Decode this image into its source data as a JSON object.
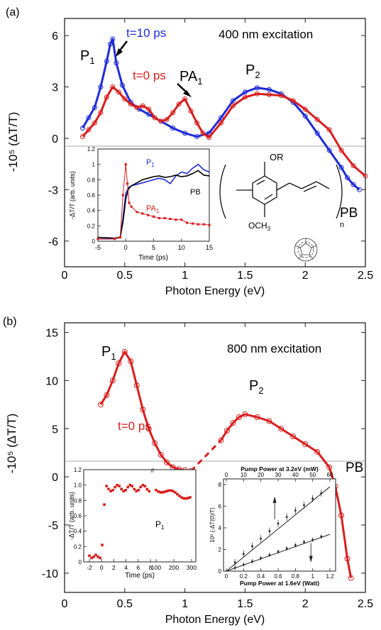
{
  "chart_data": [
    {
      "panel": "(a)",
      "type": "line",
      "annotation": "400 nm excitation",
      "xlabel": "Photon Energy (eV)",
      "ylabel": "-10⁵ (ΔT/T)",
      "xlim": [
        0,
        2.5
      ],
      "ylim": [
        -7.5,
        7
      ],
      "xticks": [
        "0",
        "0.5",
        "1",
        "1.5",
        "2",
        "2.5"
      ],
      "yticks": [
        "6",
        "3",
        "0",
        "-3",
        "-6"
      ],
      "ytick_values": [
        6,
        3,
        0,
        -3,
        -6
      ],
      "labels": {
        "p1": "P",
        "p1_sub": "1",
        "p2": "P",
        "p2_sub": "2",
        "pa1": "PA",
        "pa1_sub": "1",
        "pb": "PB",
        "t10": "t=10 ps",
        "t0": "t=0 ps"
      },
      "colors": {
        "t10": "#1f2bd6",
        "t0": "#d81e1e"
      },
      "series": [
        {
          "name": "t=10 ps",
          "x": [
            0.15,
            0.2,
            0.25,
            0.3,
            0.35,
            0.38,
            0.4,
            0.43,
            0.48,
            0.55,
            0.62,
            0.7,
            0.8,
            0.9,
            1.0,
            1.1,
            1.2,
            1.3,
            1.4,
            1.5,
            1.6,
            1.7,
            1.8,
            1.9,
            2.0,
            2.1,
            2.2,
            2.3,
            2.35,
            2.4,
            2.45
          ],
          "y": [
            0.6,
            1.2,
            1.8,
            3.0,
            4.5,
            5.5,
            5.8,
            4.4,
            3.1,
            2.1,
            1.7,
            1.4,
            1.0,
            0.6,
            0.3,
            0.1,
            0.3,
            1.2,
            2.2,
            2.7,
            2.95,
            2.85,
            2.6,
            2.1,
            1.3,
            0.3,
            -0.7,
            -1.7,
            -2.3,
            -2.7,
            -3.0
          ]
        },
        {
          "name": "t=0 ps",
          "x": [
            0.15,
            0.2,
            0.25,
            0.3,
            0.35,
            0.4,
            0.45,
            0.5,
            0.55,
            0.6,
            0.65,
            0.7,
            0.75,
            0.8,
            0.85,
            0.9,
            0.95,
            1.0,
            1.05,
            1.1,
            1.15,
            1.2,
            1.3,
            1.4,
            1.5,
            1.6,
            1.7,
            1.8,
            1.9,
            2.0,
            2.1,
            2.2,
            2.3,
            2.4,
            2.5
          ],
          "y": [
            0.1,
            0.5,
            0.9,
            1.5,
            2.4,
            3.0,
            2.7,
            2.3,
            2.0,
            1.8,
            1.9,
            1.7,
            1.2,
            1.0,
            1.1,
            1.5,
            2.0,
            2.3,
            1.6,
            0.9,
            0.3,
            0.05,
            0.9,
            1.9,
            2.4,
            2.6,
            2.55,
            2.5,
            2.2,
            1.7,
            1.1,
            0.5,
            -0.7,
            -1.6,
            -2.2
          ]
        }
      ],
      "inset": {
        "type": "line",
        "xlabel": "Time (ps)",
        "ylabel": "-ΔT/T (arb. units)",
        "xlim": [
          -5,
          15
        ],
        "ylim": [
          0,
          1.2
        ],
        "xticks": [
          "-5",
          "0",
          "5",
          "10",
          "15"
        ],
        "yticks": [
          "0",
          "0.2",
          "0.4",
          "0.6",
          "0.8",
          "1",
          "1.2"
        ],
        "labels": {
          "p1": "P",
          "p1_sub": "1",
          "pa1": "PA",
          "pa1_sub": "1",
          "pb": "PB"
        },
        "series": [
          {
            "name": "P1",
            "x": [
              -5,
              -2,
              -1,
              -0.5,
              0,
              0.5,
              1,
              2,
              3,
              4,
              5,
              6,
              7,
              8,
              9,
              10,
              11,
              12,
              13,
              14,
              15
            ],
            "y": [
              0.03,
              0.03,
              0.05,
              0.3,
              0.62,
              0.7,
              0.72,
              0.74,
              0.76,
              0.78,
              0.8,
              0.82,
              0.8,
              0.75,
              0.85,
              0.9,
              0.88,
              0.95,
              1.0,
              0.93,
              0.9
            ]
          },
          {
            "name": "PB",
            "x": [
              -5,
              -2,
              -1,
              -0.5,
              0,
              0.5,
              1,
              2,
              3,
              4,
              5,
              6,
              7,
              8,
              9,
              10,
              11,
              12,
              13,
              14,
              15
            ],
            "y": [
              0.05,
              0.04,
              0.05,
              0.25,
              0.55,
              0.68,
              0.72,
              0.76,
              0.8,
              0.82,
              0.84,
              0.85,
              0.83,
              0.84,
              0.86,
              0.84,
              0.85,
              0.88,
              0.92,
              0.86,
              0.85
            ]
          },
          {
            "name": "PA1",
            "x": [
              -5,
              -2,
              -1,
              -0.5,
              0,
              0.3,
              0.6,
              1,
              2,
              3,
              4,
              5,
              6,
              7,
              8,
              9,
              10,
              11,
              12,
              13,
              14,
              15
            ],
            "y": [
              0.03,
              0.03,
              0.05,
              0.6,
              1.0,
              0.75,
              0.5,
              0.45,
              0.38,
              0.36,
              0.34,
              0.32,
              0.3,
              0.3,
              0.29,
              0.28,
              0.28,
              0.24,
              0.23,
              0.22,
              0.22,
              0.21
            ]
          }
        ]
      },
      "molecule": {
        "or_label": "OR",
        "och3_label": "OCH",
        "och3_sub": "3",
        "n_label": "n"
      }
    },
    {
      "panel": "(b)",
      "type": "line",
      "annotation": "800 nm excitation",
      "xlabel": "Photon Energy (eV)",
      "ylabel": "-10⁵ (ΔT/T)",
      "xlim": [
        0,
        2.5
      ],
      "ylim": [
        -12,
        16
      ],
      "xticks": [
        "0",
        "0.5",
        "1",
        "1.5",
        "2",
        "2.5"
      ],
      "yticks": [
        "15",
        "10",
        "5",
        "0",
        "-5",
        "-10"
      ],
      "ytick_values": [
        15,
        10,
        5,
        0,
        -5,
        -10
      ],
      "labels": {
        "p1": "P",
        "p1_sub": "1",
        "p2": "P",
        "p2_sub": "2",
        "pb": "PB",
        "t0": "t=0 ps"
      },
      "colors": {
        "t0": "#d81e1e"
      },
      "series": [
        {
          "name": "t=0 ps",
          "x": [
            0.3,
            0.35,
            0.4,
            0.45,
            0.5,
            0.55,
            0.6,
            0.65,
            0.7,
            0.75,
            0.8,
            0.85,
            0.9,
            0.95,
            1.0,
            1.05,
            1.3,
            1.35,
            1.4,
            1.45,
            1.5,
            1.6,
            1.7,
            1.8,
            1.9,
            2.0,
            2.1,
            2.2,
            2.25,
            2.3,
            2.35,
            2.38
          ],
          "y": [
            7.5,
            8.5,
            10.0,
            11.8,
            13.0,
            12.0,
            9.5,
            7.0,
            5.0,
            3.5,
            2.3,
            1.5,
            1.0,
            0.8,
            0.7,
            0.6,
            3.8,
            4.8,
            5.6,
            6.2,
            6.5,
            6.2,
            5.8,
            5.0,
            4.2,
            3.4,
            2.6,
            1.0,
            -1.0,
            -4.0,
            -8.5,
            -10.5
          ]
        }
      ],
      "inset_left": {
        "type": "scatter",
        "xlabel": "Time (ps)",
        "ylabel": "-ΔT/T (arb. units)",
        "ylim": [
          0,
          1.2
        ],
        "xticks": [
          "-2",
          "0",
          "2",
          "4",
          "6",
          "8",
          "100",
          "200",
          "300"
        ],
        "yticks": [
          "0",
          "0.2",
          "0.4",
          "0.6",
          "0.8",
          "1.0",
          "1.2"
        ],
        "label": "P",
        "label_sub": "1"
      },
      "inset_right": {
        "type": "scatter",
        "top_xlabel": "Pump Power at 3.2eV (mW)",
        "bottom_xlabel": "Pump Power at 1.6eV (Watt)",
        "ylabel": "10⁶ (-ΔT(0)/T)",
        "top_xticks": [
          "0",
          "10",
          "20",
          "30",
          "40",
          "50",
          "60"
        ],
        "bottom_xticks": [
          "0",
          "0.2",
          "0.4",
          "0.6",
          "0.8",
          "1",
          "1.2"
        ],
        "yticks": [
          "0",
          "2",
          "4",
          "6",
          "8"
        ],
        "series": [
          {
            "name": "3.2eV",
            "x": [
              5,
              10,
              15,
              20,
              25,
              30,
              35,
              40,
              45,
              50,
              55
            ],
            "y": [
              0.8,
              1.6,
              2.3,
              3.0,
              3.7,
              4.4,
              5.0,
              5.6,
              6.1,
              6.7,
              7.2
            ]
          },
          {
            "name": "1.6eV",
            "x": [
              0.1,
              0.2,
              0.3,
              0.4,
              0.5,
              0.6,
              0.7,
              0.8,
              0.9,
              1.0,
              1.1
            ],
            "y": [
              0.3,
              0.6,
              0.9,
              1.2,
              1.5,
              1.8,
              2.1,
              2.4,
              2.7,
              2.9,
              3.2
            ]
          }
        ]
      }
    }
  ]
}
